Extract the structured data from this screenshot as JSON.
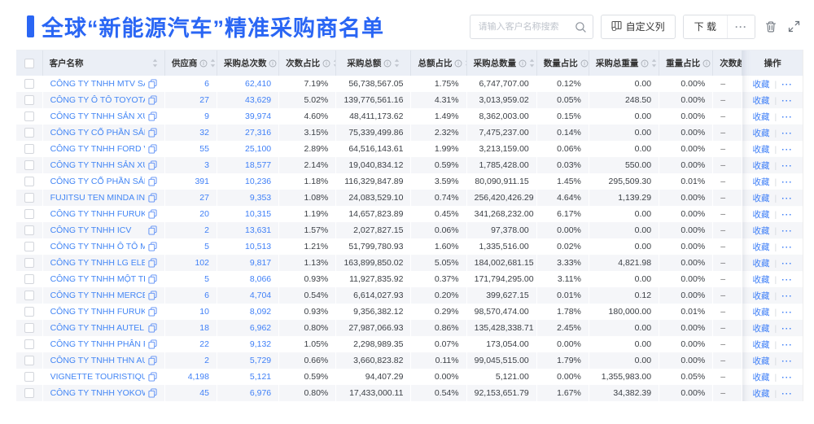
{
  "header": {
    "title": "全球“新能源汽车”精准采购商名单",
    "search": {
      "placeholder": "请输入客户名称搜索"
    },
    "buttons": {
      "customize": "自定义列",
      "download": "下 载",
      "more": "···"
    }
  },
  "colors": {
    "accent": "#2a66f4",
    "link": "#4080f7",
    "header_bg": "#ebeff6",
    "zebra": "#f5f6f9"
  },
  "table": {
    "columns": [
      {
        "key": "name",
        "label": "客户名称",
        "info": false,
        "sortable": true
      },
      {
        "key": "suppliers",
        "label": "供应商",
        "info": true,
        "sortable": true
      },
      {
        "key": "times",
        "label": "采购总次数",
        "info": true,
        "sortable": true
      },
      {
        "key": "times_pct",
        "label": "次数占比",
        "info": true,
        "sortable": true
      },
      {
        "key": "amount",
        "label": "采购总额",
        "info": true,
        "sortable": true
      },
      {
        "key": "amount_pct",
        "label": "总额占比",
        "info": true,
        "sortable": true
      },
      {
        "key": "qty",
        "label": "采购总数量",
        "info": true,
        "sortable": true
      },
      {
        "key": "qty_pct",
        "label": "数量占比",
        "info": true,
        "sortable": true
      },
      {
        "key": "weight",
        "label": "采购总重量",
        "info": true,
        "sortable": true
      },
      {
        "key": "weight_pct",
        "label": "重量占比",
        "info": true,
        "sortable": true
      },
      {
        "key": "trend",
        "label": "次数趋势",
        "info": false,
        "sortable": false
      },
      {
        "key": "action",
        "label": "操作",
        "info": false,
        "sortable": false
      }
    ],
    "action_labels": {
      "favorite": "收藏",
      "more": "···"
    },
    "rows": [
      {
        "name": "CÔNG TY TNHH MTV SẢN XUẤ...",
        "suppliers": "6",
        "times": "62,410",
        "times_pct": "7.19%",
        "amount": "56,738,567.05",
        "amount_pct": "1.75%",
        "qty": "6,747,707.00",
        "qty_pct": "0.12%",
        "weight": "0.00",
        "weight_pct": "0.00%",
        "trend": "–"
      },
      {
        "name": "CÔNG TY Ô TÔ TOYOTA VIỆT ...",
        "suppliers": "27",
        "times": "43,629",
        "times_pct": "5.02%",
        "amount": "139,776,561.16",
        "amount_pct": "4.31%",
        "qty": "3,013,959.02",
        "qty_pct": "0.05%",
        "weight": "248.50",
        "weight_pct": "0.00%",
        "trend": "–"
      },
      {
        "name": "CÔNG TY TNHH SẢN XUẤT VÀ ...",
        "suppliers": "9",
        "times": "39,974",
        "times_pct": "4.60%",
        "amount": "48,411,173.62",
        "amount_pct": "1.49%",
        "qty": "8,362,003.00",
        "qty_pct": "0.15%",
        "weight": "0.00",
        "weight_pct": "0.00%",
        "trend": "–"
      },
      {
        "name": "CÔNG TY CỔ PHẦN SẢN XUẤT...",
        "suppliers": "32",
        "times": "27,316",
        "times_pct": "3.15%",
        "amount": "75,339,499.86",
        "amount_pct": "2.32%",
        "qty": "7,475,237.00",
        "qty_pct": "0.14%",
        "weight": "0.00",
        "weight_pct": "0.00%",
        "trend": "–"
      },
      {
        "name": "CÔNG TY TNHH FORD VIỆT NAM",
        "suppliers": "55",
        "times": "25,100",
        "times_pct": "2.89%",
        "amount": "64,516,143.61",
        "amount_pct": "1.99%",
        "qty": "3,213,159.00",
        "qty_pct": "0.06%",
        "weight": "0.00",
        "weight_pct": "0.00%",
        "trend": "–"
      },
      {
        "name": "CÔNG TY TNHH SẢN XUẤT VÀ ...",
        "suppliers": "3",
        "times": "18,577",
        "times_pct": "2.14%",
        "amount": "19,040,834.12",
        "amount_pct": "0.59%",
        "qty": "1,785,428.00",
        "qty_pct": "0.03%",
        "weight": "550.00",
        "weight_pct": "0.00%",
        "trend": "–"
      },
      {
        "name": "CÔNG TY CỔ PHẦN SẢN XUẤT...",
        "suppliers": "391",
        "times": "10,236",
        "times_pct": "1.18%",
        "amount": "116,329,847.89",
        "amount_pct": "3.59%",
        "qty": "80,090,911.15",
        "qty_pct": "1.45%",
        "weight": "295,509.30",
        "weight_pct": "0.01%",
        "trend": "–"
      },
      {
        "name": "FUJITSU TEN MINDA INDIA PVT...",
        "suppliers": "27",
        "times": "9,353",
        "times_pct": "1.08%",
        "amount": "24,083,529.10",
        "amount_pct": "0.74%",
        "qty": "256,420,426.29",
        "qty_pct": "4.64%",
        "weight": "1,139.29",
        "weight_pct": "0.00%",
        "trend": "–"
      },
      {
        "name": "CÔNG TY TNHH FURUKAWA A...",
        "suppliers": "20",
        "times": "10,315",
        "times_pct": "1.19%",
        "amount": "14,657,823.89",
        "amount_pct": "0.45%",
        "qty": "341,268,232.00",
        "qty_pct": "6.17%",
        "weight": "0.00",
        "weight_pct": "0.00%",
        "trend": "–"
      },
      {
        "name": "CÔNG TY TNHH ICV",
        "suppliers": "2",
        "times": "13,631",
        "times_pct": "1.57%",
        "amount": "2,027,827.15",
        "amount_pct": "0.06%",
        "qty": "97,378.00",
        "qty_pct": "0.00%",
        "weight": "0.00",
        "weight_pct": "0.00%",
        "trend": "–"
      },
      {
        "name": "CÔNG TY TNHH Ô TÔ MITSUBI...",
        "suppliers": "5",
        "times": "10,513",
        "times_pct": "1.21%",
        "amount": "51,799,780.93",
        "amount_pct": "1.60%",
        "qty": "1,335,516.00",
        "qty_pct": "0.02%",
        "weight": "0.00",
        "weight_pct": "0.00%",
        "trend": "–"
      },
      {
        "name": "CÔNG TY TNHH LG ELECTRON...",
        "suppliers": "102",
        "times": "9,817",
        "times_pct": "1.13%",
        "amount": "163,899,850.02",
        "amount_pct": "5.05%",
        "qty": "184,002,681.15",
        "qty_pct": "3.33%",
        "weight": "4,821.98",
        "weight_pct": "0.00%",
        "trend": "–"
      },
      {
        "name": "CÔNG TY TNHH MỘT THÀNH V...",
        "suppliers": "5",
        "times": "8,066",
        "times_pct": "0.93%",
        "amount": "11,927,835.92",
        "amount_pct": "0.37%",
        "qty": "171,794,295.00",
        "qty_pct": "3.11%",
        "weight": "0.00",
        "weight_pct": "0.00%",
        "trend": "–"
      },
      {
        "name": "CÔNG TY TNHH MERCEDES–B...",
        "suppliers": "6",
        "times": "4,704",
        "times_pct": "0.54%",
        "amount": "6,614,027.93",
        "amount_pct": "0.20%",
        "qty": "399,627.15",
        "qty_pct": "0.01%",
        "weight": "0.12",
        "weight_pct": "0.00%",
        "trend": "–"
      },
      {
        "name": "CÔNG TY TNHH FURUKAWA A...",
        "suppliers": "10",
        "times": "8,092",
        "times_pct": "0.93%",
        "amount": "9,356,382.12",
        "amount_pct": "0.29%",
        "qty": "98,570,474.00",
        "qty_pct": "1.78%",
        "weight": "180,000.00",
        "weight_pct": "0.01%",
        "trend": "–"
      },
      {
        "name": "CÔNG TY TNHH AUTEL VIỆT N...",
        "suppliers": "18",
        "times": "6,962",
        "times_pct": "0.80%",
        "amount": "27,987,066.93",
        "amount_pct": "0.86%",
        "qty": "135,428,338.71",
        "qty_pct": "2.45%",
        "weight": "0.00",
        "weight_pct": "0.00%",
        "trend": "–"
      },
      {
        "name": "CÔNG TY TNHH PHÂN PHỐI T...",
        "suppliers": "22",
        "times": "9,132",
        "times_pct": "1.05%",
        "amount": "2,298,989.35",
        "amount_pct": "0.07%",
        "qty": "173,054.00",
        "qty_pct": "0.00%",
        "weight": "0.00",
        "weight_pct": "0.00%",
        "trend": "–"
      },
      {
        "name": "CÔNG TY TNHH THN AUTOPAR...",
        "suppliers": "2",
        "times": "5,729",
        "times_pct": "0.66%",
        "amount": "3,660,823.82",
        "amount_pct": "0.11%",
        "qty": "99,045,515.00",
        "qty_pct": "1.79%",
        "weight": "0.00",
        "weight_pct": "0.00%",
        "trend": "–"
      },
      {
        "name": "VIGNETTE TOURISTIQUE G UNI...",
        "suppliers": "4,198",
        "times": "5,121",
        "times_pct": "0.59%",
        "amount": "94,407.29",
        "amount_pct": "0.00%",
        "qty": "5,121.00",
        "qty_pct": "0.00%",
        "weight": "1,355,983.00",
        "weight_pct": "0.05%",
        "trend": "–"
      },
      {
        "name": "CÔNG TY TNHH YOKOWO VIỆT...",
        "suppliers": "45",
        "times": "6,976",
        "times_pct": "0.80%",
        "amount": "17,433,000.11",
        "amount_pct": "0.54%",
        "qty": "92,153,651.79",
        "qty_pct": "1.67%",
        "weight": "34,382.39",
        "weight_pct": "0.00%",
        "trend": "–"
      }
    ]
  }
}
